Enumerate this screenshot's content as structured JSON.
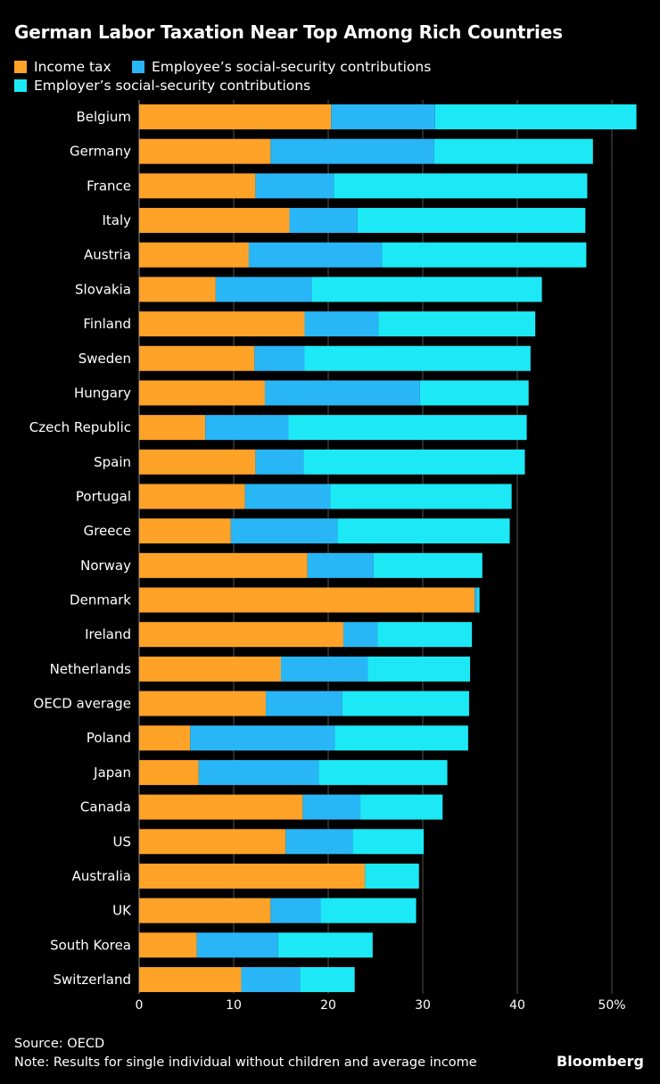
{
  "chart_data": {
    "type": "bar",
    "orientation": "horizontal",
    "stacked": true,
    "title": "German Labor Taxation Near Top Among Rich Countries",
    "xlabel": "",
    "ylabel": "",
    "xlim": [
      0,
      52
    ],
    "xticks": [
      0,
      10,
      20,
      30,
      40,
      50
    ],
    "xtick_labels": [
      "0",
      "10",
      "20",
      "30",
      "40",
      "50%"
    ],
    "grid": true,
    "legend_position": "top-left",
    "categories": [
      "Belgium",
      "Germany",
      "France",
      "Italy",
      "Austria",
      "Slovakia",
      "Finland",
      "Sweden",
      "Hungary",
      "Czech Republic",
      "Spain",
      "Portugal",
      "Greece",
      "Norway",
      "Denmark",
      "Ireland",
      "Netherlands",
      "OECD average",
      "Poland",
      "Japan",
      "Canada",
      "US",
      "Australia",
      "UK",
      "South Korea",
      "Switzerland"
    ],
    "series": [
      {
        "name": "Income tax",
        "color": "#ffa228",
        "values": [
          20.3,
          13.9,
          12.3,
          15.9,
          11.6,
          8.1,
          17.5,
          12.2,
          13.3,
          7.0,
          12.3,
          11.2,
          9.7,
          17.8,
          35.5,
          21.6,
          15.0,
          13.4,
          5.4,
          6.3,
          17.3,
          15.5,
          23.9,
          13.9,
          6.1,
          10.8
        ]
      },
      {
        "name": "Employee’s social-security contributions",
        "color": "#29b6f6",
        "values": [
          11.0,
          17.3,
          8.3,
          7.2,
          14.1,
          10.2,
          7.8,
          5.3,
          16.4,
          8.8,
          5.1,
          9.0,
          11.3,
          7.0,
          0.3,
          3.6,
          9.2,
          8.1,
          15.3,
          12.7,
          6.1,
          7.1,
          0.0,
          5.3,
          8.6,
          6.2
        ]
      },
      {
        "name": "Employer’s social-security contributions",
        "color": "#1de9f6",
        "values": [
          21.3,
          16.8,
          26.8,
          24.1,
          21.6,
          24.3,
          16.6,
          23.9,
          11.5,
          25.2,
          23.4,
          19.2,
          18.2,
          11.5,
          0.2,
          10.0,
          10.8,
          13.4,
          14.1,
          13.6,
          8.7,
          7.5,
          5.7,
          10.1,
          10.0,
          5.8
        ]
      }
    ]
  },
  "footer": {
    "source": "Source: OECD",
    "note": "Note: Results for single individual without children and average income",
    "brand": "Bloomberg"
  }
}
